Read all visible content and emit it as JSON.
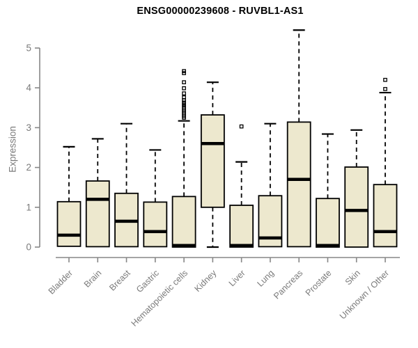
{
  "title": "ENSG00000239608 - RUVBL1-AS1",
  "chart_data": {
    "type": "boxplot",
    "title": "ENSG00000239608 - RUVBL1-AS1",
    "xlabel": "",
    "ylabel": "Expression",
    "ylim": [
      0,
      5.5
    ],
    "yticks": [
      0,
      1,
      2,
      3,
      4,
      5
    ],
    "grid": false,
    "legend": "none",
    "categories": [
      "Bladder",
      "Brain",
      "Breast",
      "Gastric",
      "Hematopoietic cells",
      "Kidney",
      "Liver",
      "Lung",
      "Pancreas",
      "Prostate",
      "Skin",
      "Unknown / Other"
    ],
    "series": [
      {
        "name": "Bladder",
        "whisker_low": 0.02,
        "q1": 0.02,
        "median": 0.3,
        "q3": 1.14,
        "whisker_high": 2.52,
        "outliers": []
      },
      {
        "name": "Brain",
        "whisker_low": 0.01,
        "q1": 0.01,
        "median": 1.2,
        "q3": 1.66,
        "whisker_high": 2.72,
        "outliers": []
      },
      {
        "name": "Breast",
        "whisker_low": 0.01,
        "q1": 0.01,
        "median": 0.65,
        "q3": 1.35,
        "whisker_high": 3.1,
        "outliers": []
      },
      {
        "name": "Gastric",
        "whisker_low": 0.01,
        "q1": 0.01,
        "median": 0.39,
        "q3": 1.13,
        "whisker_high": 2.44,
        "outliers": []
      },
      {
        "name": "Hematopoietic cells",
        "whisker_low": 0.0,
        "q1": 0.0,
        "median": 0.04,
        "q3": 1.27,
        "whisker_high": 3.17,
        "outliers": [
          3.25,
          3.29,
          3.33,
          3.37,
          3.41,
          3.45,
          3.49,
          3.53,
          3.58,
          3.63,
          3.69,
          3.76,
          3.86,
          3.99,
          4.14,
          4.37,
          4.42
        ]
      },
      {
        "name": "Kidney",
        "whisker_low": 0.0,
        "q1": 1.0,
        "median": 2.6,
        "q3": 3.32,
        "whisker_high": 4.14,
        "outliers": []
      },
      {
        "name": "Liver",
        "whisker_low": 0.0,
        "q1": 0.0,
        "median": 0.04,
        "q3": 1.05,
        "whisker_high": 2.14,
        "outliers": [
          3.03
        ]
      },
      {
        "name": "Lung",
        "whisker_low": 0.01,
        "q1": 0.01,
        "median": 0.23,
        "q3": 1.29,
        "whisker_high": 3.1,
        "outliers": []
      },
      {
        "name": "Pancreas",
        "whisker_low": 0.01,
        "q1": 0.01,
        "median": 1.7,
        "q3": 3.14,
        "whisker_high": 5.45,
        "outliers": []
      },
      {
        "name": "Prostate",
        "whisker_low": 0.0,
        "q1": 0.0,
        "median": 0.04,
        "q3": 1.22,
        "whisker_high": 2.84,
        "outliers": []
      },
      {
        "name": "Skin",
        "whisker_low": 0.0,
        "q1": 0.0,
        "median": 0.92,
        "q3": 2.01,
        "whisker_high": 2.94,
        "outliers": []
      },
      {
        "name": "Unknown / Other",
        "whisker_low": 0.01,
        "q1": 0.01,
        "median": 0.39,
        "q3": 1.57,
        "whisker_high": 3.88,
        "outliers": [
          3.97,
          4.2
        ]
      }
    ],
    "colors": {
      "box_fill": "#EDE8CE",
      "box_border": "#000000",
      "median": "#000000",
      "axis_line": "#878787",
      "tick_label": "#7A7A7A",
      "title": "#000000"
    }
  }
}
